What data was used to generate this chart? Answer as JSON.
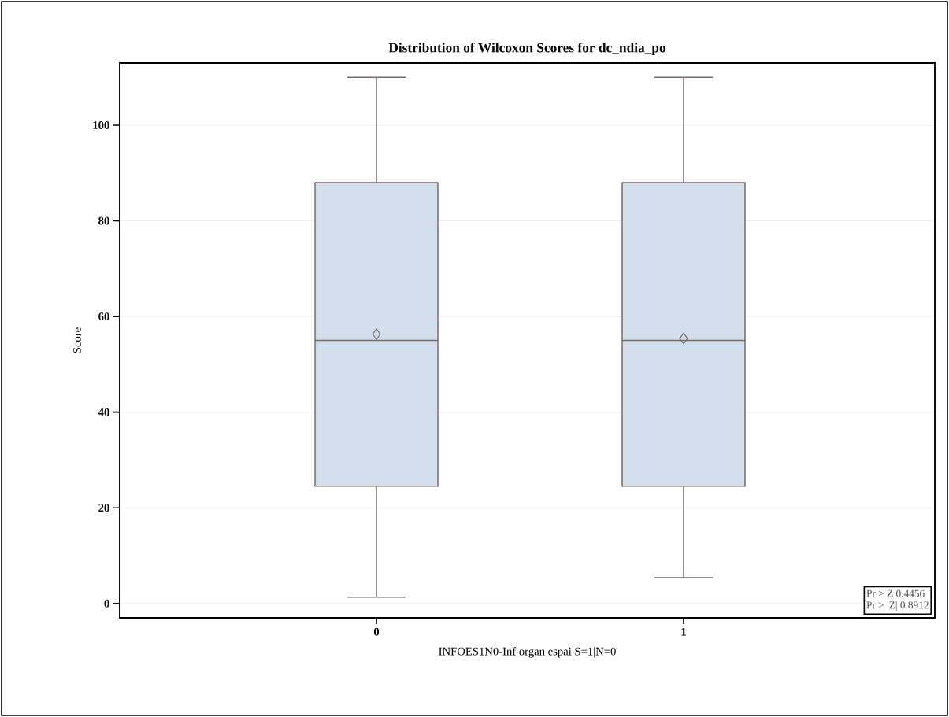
{
  "chart_data": {
    "type": "box",
    "title": "Distribution of Wilcoxon Scores for dc_ndia_po",
    "xlabel": "INFOES1N0-Inf organ espai S=1|N=0",
    "ylabel": "Score",
    "categories": [
      "0",
      "1"
    ],
    "series": [
      {
        "color": "#d3dfec",
        "boxes": [
          {
            "low": 1.3,
            "q1": 24.5,
            "median": 55,
            "q3": 88,
            "high": 110,
            "mean": 56.3
          },
          {
            "low": 5.4,
            "q1": 24.5,
            "median": 55,
            "q3": 88,
            "high": 110,
            "mean": 55.4
          }
        ]
      }
    ],
    "ylim": [
      -3,
      113
    ],
    "yticks": [
      0,
      20,
      40,
      60,
      80,
      100
    ],
    "grid": "y",
    "annotations": [
      "Pr > Z   0.4456",
      "Pr > |Z|   0.8912"
    ]
  }
}
